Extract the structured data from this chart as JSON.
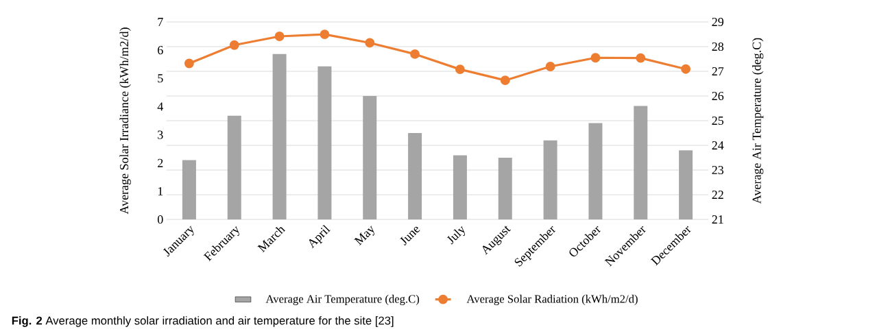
{
  "chart_data": {
    "type": "bar",
    "categories": [
      "January",
      "February",
      "March",
      "April",
      "May",
      "June",
      "July",
      "August",
      "September",
      "October",
      "November",
      "December"
    ],
    "series": [
      {
        "name": "Average Air Temperature (deg.C)",
        "axis": "y2",
        "color": "#a5a5a5",
        "values": [
          23.4,
          25.2,
          27.7,
          27.2,
          26.0,
          24.5,
          23.6,
          23.5,
          24.2,
          24.9,
          25.6,
          23.8
        ]
      },
      {
        "name": "Average Solar Radiation (kWh/m2/d)",
        "type": "line",
        "axis": "y",
        "color": "#ed7d31",
        "values": [
          5.53,
          6.18,
          6.49,
          6.56,
          6.26,
          5.86,
          5.32,
          4.93,
          5.42,
          5.73,
          5.72,
          5.33
        ]
      }
    ],
    "ylabel": "Average Solar Irradiance (kWh/m2/d)",
    "y2label": "Average Air Temperature (deg.C)",
    "ylim": [
      0,
      7
    ],
    "yticks": [
      0,
      1,
      2,
      3,
      4,
      5,
      6,
      7
    ],
    "y2lim": [
      21,
      29
    ],
    "y2ticks": [
      21,
      22,
      23,
      24,
      25,
      26,
      27,
      28,
      29
    ],
    "grid": "y",
    "legend": "bottom",
    "marker": "circle",
    "line_style": "solid",
    "annotations": [
      "**Fig. 2** Average monthly solar irradiation and air temperature for the site [23]"
    ]
  }
}
